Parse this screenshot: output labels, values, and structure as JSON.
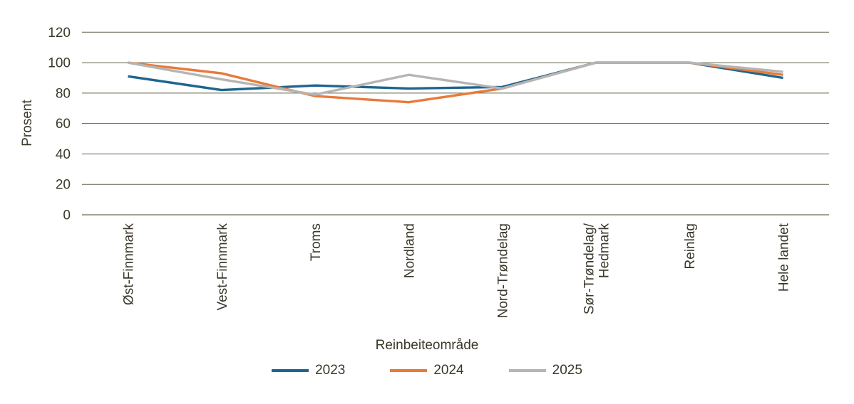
{
  "chart_data": {
    "type": "line",
    "title": "",
    "xlabel": "Reinbeiteområde",
    "ylabel": "Prosent",
    "ylim": [
      0,
      120
    ],
    "yticks": [
      0,
      20,
      40,
      60,
      80,
      100,
      120
    ],
    "grid": "horizontal",
    "legend_position": "bottom",
    "categories": [
      "Øst-Finnmark",
      "Vest-Finnmark",
      "Troms",
      "Nordland",
      "Nord-Trøndelag",
      "Sør-Trøndelag/\nHedmark",
      "Reinlag",
      "Hele landet"
    ],
    "series": [
      {
        "name": "2023",
        "color": "#1e6590",
        "values": [
          91,
          82,
          85,
          83,
          84,
          100,
          100,
          90
        ]
      },
      {
        "name": "2024",
        "color": "#e87a3a",
        "values": [
          100,
          93,
          78,
          74,
          83,
          100,
          100,
          92
        ]
      },
      {
        "name": "2025",
        "color": "#b5b5b4",
        "values": [
          100,
          89,
          79,
          92,
          83,
          100,
          100,
          94
        ]
      }
    ]
  },
  "colors": {
    "background": "#ffffff",
    "text": "#3b382b",
    "gridline": "#63624e",
    "axis_line": "#a3a296"
  }
}
